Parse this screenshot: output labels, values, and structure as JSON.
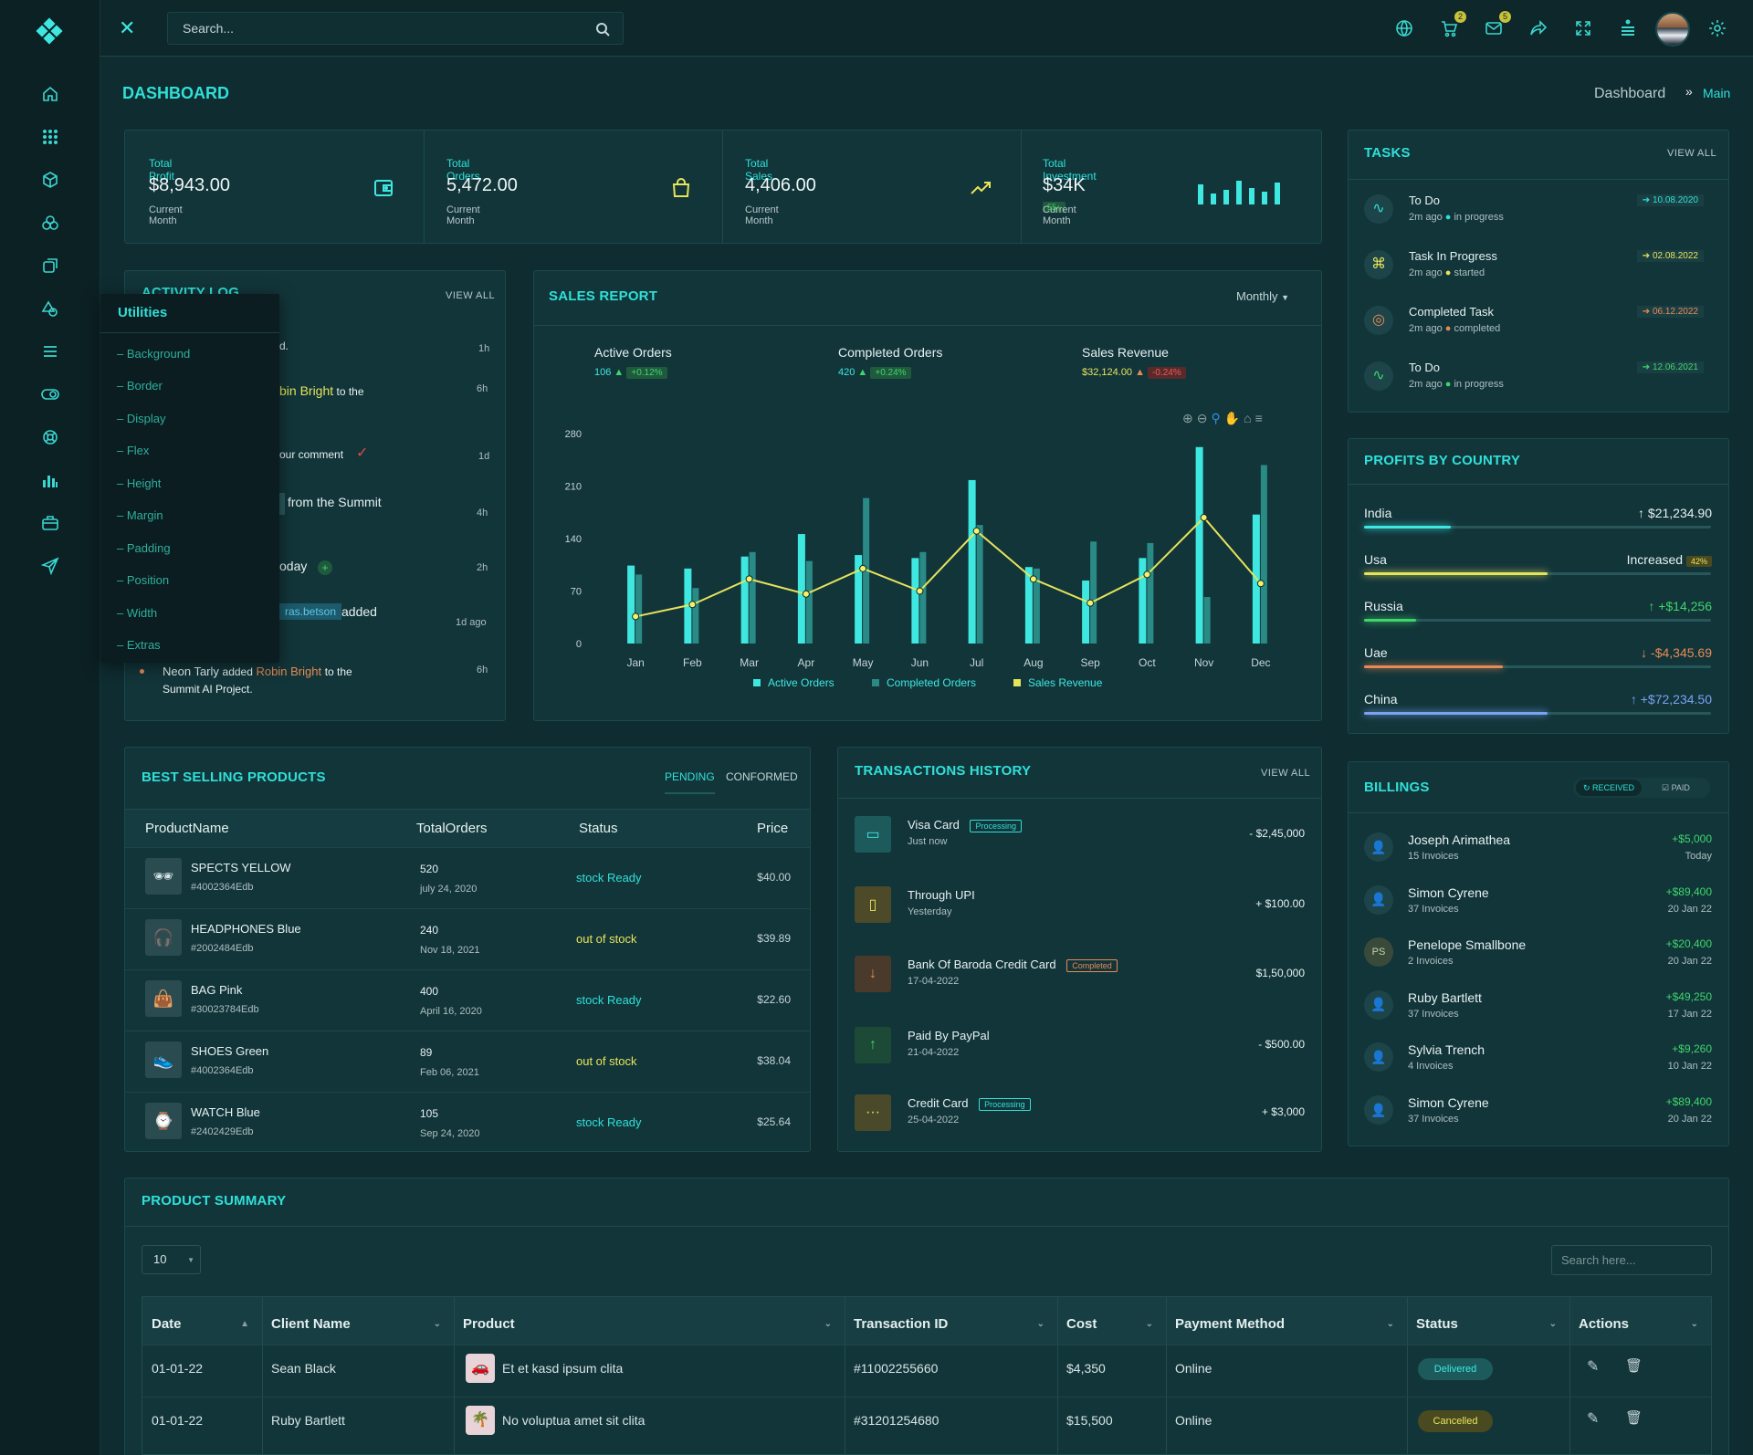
{
  "search": {
    "placeholder": "Search..."
  },
  "header": {
    "cart_count": "2",
    "mail_count": "5"
  },
  "page": {
    "title": "DASHBOARD",
    "breadcrumb_home": "Dashboard",
    "breadcrumb_current": "Main"
  },
  "stats": [
    {
      "title": "Total Profit",
      "value": "$8,943.00",
      "sub": "Current Month"
    },
    {
      "title": "Total Orders",
      "value": "5,472.00",
      "sub": "Current Month"
    },
    {
      "title": "Total Sales",
      "value": "4,406.00",
      "sub": "Current Month"
    },
    {
      "title": "Total Investment",
      "value": "$34K",
      "chip": "55",
      "sub": "Current Month"
    }
  ],
  "utilities": {
    "title": "Utilities",
    "items": [
      "Background",
      "Border",
      "Display",
      "Flex",
      "Height",
      "Margin",
      "Padding",
      "Position",
      "Width",
      "Extras"
    ]
  },
  "activity": {
    "title": "ACTIVITY LOG",
    "view_all": "VIEW ALL",
    "items": [
      {
        "pre": "",
        "hl": "",
        "post": "d.",
        "time": "1h"
      },
      {
        "pre": "",
        "hl": "bin Bright",
        "post": " to the",
        "time": "6h"
      },
      {
        "pre": "our comment",
        "hl": "",
        "post": "",
        "time": "1d"
      },
      {
        "pre": "from the Summit",
        "hl": "",
        "post": "",
        "time": "4h"
      },
      {
        "pre": "oday",
        "hl": "",
        "post": "",
        "time": "2h"
      },
      {
        "pre": "ras.betson",
        "hl": "",
        "post": "added",
        "time": "1d ago"
      }
    ],
    "last": {
      "name": "Neon Tarly",
      "verb": "added",
      "hl": "Robin Bright",
      "post": "to the",
      "line2": "Summit AI Project.",
      "time": "6h"
    }
  },
  "sales": {
    "title": "SALES REPORT",
    "period": "Monthly",
    "summary": [
      {
        "label": "Active Orders",
        "value": "106",
        "chip": "+0.12%"
      },
      {
        "label": "Completed Orders",
        "value": "420",
        "chip": "+0.24%"
      },
      {
        "label": "Sales Revenue",
        "value": "$32,124.00",
        "chip": "-0.24%"
      }
    ]
  },
  "chart_data": {
    "type": "bar",
    "categories": [
      "Jan",
      "Feb",
      "Mar",
      "Apr",
      "May",
      "Jun",
      "Jul",
      "Aug",
      "Sep",
      "Oct",
      "Nov",
      "Dec"
    ],
    "ylim": [
      0,
      280
    ],
    "yticks": [
      0,
      70,
      140,
      210,
      280
    ],
    "series": [
      {
        "name": "Active Orders",
        "kind": "bar",
        "color": "#3ee8e0",
        "values": [
          104,
          100,
          116,
          146,
          118,
          114,
          218,
          102,
          84,
          114,
          262,
          172
        ]
      },
      {
        "name": "Completed Orders",
        "kind": "bar",
        "color": "#2a8a86",
        "values": [
          92,
          74,
          122,
          110,
          194,
          122,
          158,
          100,
          136,
          134,
          62,
          238
        ]
      },
      {
        "name": "Sales Revenue",
        "kind": "line",
        "color": "#e6e45a",
        "values": [
          36,
          52,
          86,
          66,
          100,
          70,
          150,
          86,
          54,
          92,
          168,
          80
        ]
      }
    ]
  },
  "tasks": {
    "title": "TASKS",
    "view_all": "VIEW ALL",
    "items": [
      {
        "title": "To Do",
        "ago": "2m ago",
        "status": "in progress",
        "date": "10.08.2020",
        "color": "#2fe0d8",
        "dot": "#2fe0d8"
      },
      {
        "title": "Task In Progress",
        "ago": "2m ago",
        "status": "started",
        "date": "02.08.2022",
        "color": "#e6e45a",
        "dot": "#e6e45a"
      },
      {
        "title": "Completed Task",
        "ago": "2m ago",
        "status": "completed",
        "date": "06.12.2022",
        "color": "#e88a56",
        "dot": "#e88a56"
      },
      {
        "title": "To Do",
        "ago": "2m ago",
        "status": "in progress",
        "date": "12.06.2021",
        "color": "#3ed66b",
        "dot": "#3ed66b"
      }
    ]
  },
  "profits": {
    "title": "PROFITS BY COUNTRY",
    "items": [
      {
        "country": "India",
        "value": "$21,234.90",
        "color": "#e7f1f2",
        "bar": "#3ee8e0",
        "pct": 25,
        "arrow": "up"
      },
      {
        "country": "Usa",
        "value": "Increased",
        "chip": "42%",
        "color": "#e7f1f2",
        "bar": "#e6e45a",
        "pct": 53,
        "arrow": ""
      },
      {
        "country": "Russia",
        "value": "+$14,256",
        "color": "#3ed66b",
        "bar": "#3ed66b",
        "pct": 15,
        "arrow": "up"
      },
      {
        "country": "Uae",
        "value": "-$4,345.69",
        "color": "#e88a56",
        "bar": "#e88a56",
        "pct": 40,
        "arrow": "down"
      },
      {
        "country": "China",
        "value": "+$72,234.50",
        "color": "#7aa3f0",
        "bar": "#7aa3f0",
        "pct": 53,
        "arrow": "up"
      }
    ]
  },
  "products": {
    "title": "BEST SELLING PRODUCTS",
    "tabs": [
      "PENDING",
      "CONFORMED"
    ],
    "columns": [
      "ProductName",
      "TotalOrders",
      "Status",
      "Price"
    ],
    "rows": [
      {
        "name": "SPECTS YELLOW",
        "code": "#4002364Edb",
        "orders": "520",
        "date": "july 24, 2020",
        "status": "stock Ready",
        "price": "$40.00",
        "icon": "🕶"
      },
      {
        "name": "HEADPHONES Blue",
        "code": "#2002484Edb",
        "orders": "240",
        "date": "Nov 18, 2021",
        "status": "out of stock",
        "price": "$39.89",
        "icon": "🎧"
      },
      {
        "name": "BAG Pink",
        "code": "#30023784Edb",
        "orders": "400",
        "date": "April 16, 2020",
        "status": "stock Ready",
        "price": "$22.60",
        "icon": "👜"
      },
      {
        "name": "SHOES Green",
        "code": "#4002364Edb",
        "orders": "89",
        "date": "Feb 06, 2021",
        "status": "out of stock",
        "price": "$38.04",
        "icon": "👟"
      },
      {
        "name": "WATCH Blue",
        "code": "#2402429Edb",
        "orders": "105",
        "date": "Sep 24, 2020",
        "status": "stock Ready",
        "price": "$25.64",
        "icon": "⌚"
      }
    ]
  },
  "transactions": {
    "title": "TRANSACTIONS HISTORY",
    "view_all": "VIEW ALL",
    "items": [
      {
        "name": "Visa Card",
        "badge": "Processing",
        "when": "Just now",
        "amount": "- $2,45,000",
        "bg": "#1c5a5c",
        "fg": "#3ee8e0",
        "icon": "▭"
      },
      {
        "name": "Through UPI",
        "badge": "",
        "when": "Yesterday",
        "amount": "+ $100.00",
        "bg": "#4d4a2a",
        "fg": "#e6e45a",
        "icon": "▯"
      },
      {
        "name": "Bank Of Baroda Credit Card",
        "badge": "Completed",
        "when": "17-04-2022",
        "amount": "$1,50,000",
        "bg": "#4a3a2c",
        "fg": "#e88a56",
        "icon": "↓"
      },
      {
        "name": "Paid By PayPal",
        "badge": "",
        "when": "21-04-2022",
        "amount": "- $500.00",
        "bg": "#1c4a36",
        "fg": "#3ed66b",
        "icon": "↑"
      },
      {
        "name": "Credit Card",
        "badge": "Processing",
        "when": "25-04-2022",
        "amount": "+ $3,000",
        "bg": "#4a4a2a",
        "fg": "#e6e45a",
        "icon": "···"
      }
    ]
  },
  "billings": {
    "title": "BILLINGS",
    "btn_received": "RECEIVED",
    "btn_paid": "PAID",
    "items": [
      {
        "name": "Joseph Arimathea",
        "inv": "15 Invoices",
        "amount": "+$5,000",
        "date": "Today",
        "initials": ""
      },
      {
        "name": "Simon Cyrene",
        "inv": "37 Invoices",
        "amount": "+$89,400",
        "date": "20 Jan 22",
        "initials": ""
      },
      {
        "name": "Penelope Smallbone",
        "inv": "2 Invoices",
        "amount": "+$20,400",
        "date": "20 Jan 22",
        "initials": "PS"
      },
      {
        "name": "Ruby Bartlett",
        "inv": "37 Invoices",
        "amount": "+$49,250",
        "date": "17 Jan 22",
        "initials": ""
      },
      {
        "name": "Sylvia Trench",
        "inv": "4 Invoices",
        "amount": "+$9,260",
        "date": "10 Jan 22",
        "initials": ""
      },
      {
        "name": "Simon Cyrene",
        "inv": "37 Invoices",
        "amount": "+$89,400",
        "date": "20 Jan 22",
        "initials": ""
      }
    ]
  },
  "summary": {
    "title": "PRODUCT SUMMARY",
    "page_size": "10",
    "search_placeholder": "Search here...",
    "columns": [
      "Date",
      "Client Name",
      "Product",
      "Transaction ID",
      "Cost",
      "Payment Method",
      "Status",
      "Actions"
    ],
    "rows": [
      {
        "date": "01-01-22",
        "client": "Sean Black",
        "product": "Et et kasd ipsum clita",
        "txn": "#11002255660",
        "cost": "$4,350",
        "method": "Online",
        "status": "Delivered",
        "icon": "🚗"
      },
      {
        "date": "01-01-22",
        "client": "Ruby Bartlett",
        "product": "No voluptua amet sit clita",
        "txn": "#31201254680",
        "cost": "$15,500",
        "method": "Online",
        "status": "Cancelled",
        "icon": "🌴"
      }
    ]
  }
}
